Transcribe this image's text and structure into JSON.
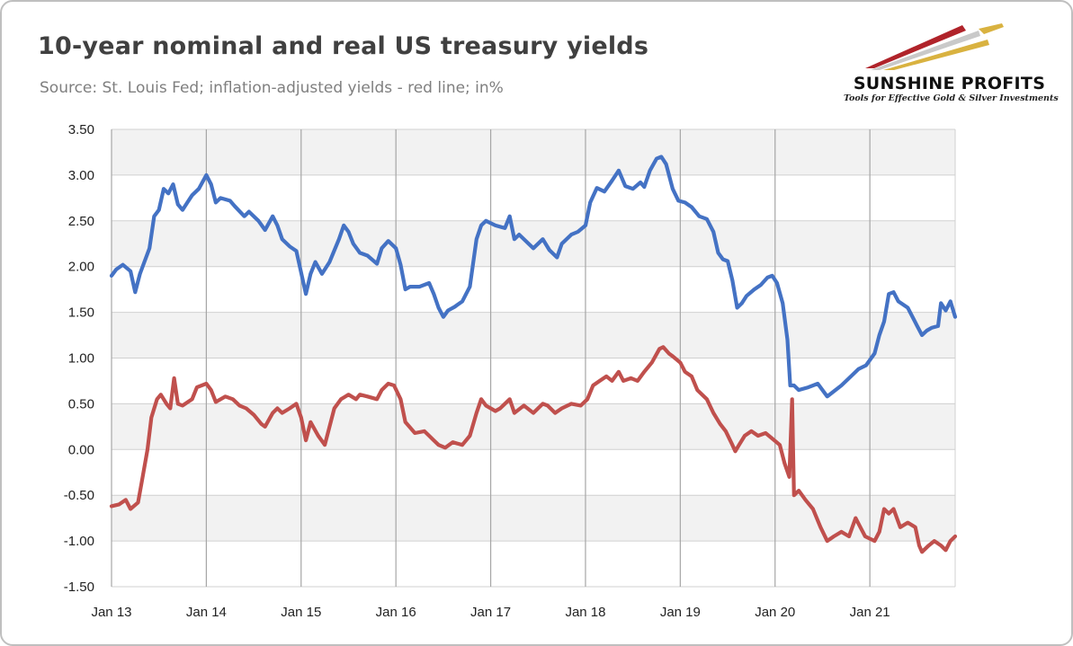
{
  "title": "10-year nominal and real US treasury yields",
  "subtitle": "Source: St. Louis Fed; inflation-adjusted yields - red line; in%",
  "logo": {
    "name": "SUNSHINE PROFITS",
    "tagline": "Tools for Effective Gold & Silver Investments",
    "colors": [
      "#b0232a",
      "#d9b240",
      "#c9c9c9"
    ]
  },
  "chart_data": {
    "type": "line",
    "title": "10-year nominal and real US treasury yields",
    "xlabel": "",
    "ylabel": "",
    "x_range": [
      2013.0,
      2021.9
    ],
    "ylim": [
      -1.5,
      3.5
    ],
    "y_ticks": [
      3.5,
      3.0,
      2.5,
      2.0,
      1.5,
      1.0,
      0.5,
      0.0,
      -0.5,
      -1.0,
      -1.5
    ],
    "y_tick_labels": [
      "3.50",
      "3.00",
      "2.50",
      "2.00",
      "1.50",
      "1.00",
      "0.50",
      "0.00",
      "-0.50",
      "-1.00",
      "-1.50"
    ],
    "x_ticks": [
      2013,
      2014,
      2015,
      2016,
      2017,
      2018,
      2019,
      2020,
      2021
    ],
    "x_tick_labels": [
      "Jan 13",
      "Jan 14",
      "Jan 15",
      "Jan 16",
      "Jan 17",
      "Jan 18",
      "Jan 19",
      "Jan 20",
      "Jan 21"
    ],
    "grid": true,
    "legend": "none",
    "series": [
      {
        "color": "#4472c4",
        "points": [
          [
            2013.0,
            1.9
          ],
          [
            2013.05,
            1.97
          ],
          [
            2013.12,
            2.02
          ],
          [
            2013.2,
            1.95
          ],
          [
            2013.25,
            1.72
          ],
          [
            2013.3,
            1.92
          ],
          [
            2013.4,
            2.2
          ],
          [
            2013.45,
            2.55
          ],
          [
            2013.5,
            2.62
          ],
          [
            2013.55,
            2.85
          ],
          [
            2013.6,
            2.8
          ],
          [
            2013.65,
            2.9
          ],
          [
            2013.7,
            2.68
          ],
          [
            2013.75,
            2.62
          ],
          [
            2013.8,
            2.7
          ],
          [
            2013.85,
            2.78
          ],
          [
            2013.92,
            2.85
          ],
          [
            2014.0,
            3.0
          ],
          [
            2014.05,
            2.9
          ],
          [
            2014.1,
            2.7
          ],
          [
            2014.15,
            2.75
          ],
          [
            2014.25,
            2.72
          ],
          [
            2014.3,
            2.66
          ],
          [
            2014.4,
            2.55
          ],
          [
            2014.45,
            2.6
          ],
          [
            2014.55,
            2.5
          ],
          [
            2014.62,
            2.4
          ],
          [
            2014.7,
            2.55
          ],
          [
            2014.75,
            2.45
          ],
          [
            2014.8,
            2.3
          ],
          [
            2014.88,
            2.22
          ],
          [
            2014.95,
            2.17
          ],
          [
            2015.05,
            1.7
          ],
          [
            2015.1,
            1.92
          ],
          [
            2015.15,
            2.05
          ],
          [
            2015.22,
            1.92
          ],
          [
            2015.3,
            2.05
          ],
          [
            2015.4,
            2.3
          ],
          [
            2015.45,
            2.45
          ],
          [
            2015.5,
            2.38
          ],
          [
            2015.55,
            2.25
          ],
          [
            2015.62,
            2.15
          ],
          [
            2015.7,
            2.12
          ],
          [
            2015.8,
            2.03
          ],
          [
            2015.85,
            2.2
          ],
          [
            2015.92,
            2.28
          ],
          [
            2016.0,
            2.2
          ],
          [
            2016.05,
            2.02
          ],
          [
            2016.1,
            1.75
          ],
          [
            2016.15,
            1.78
          ],
          [
            2016.25,
            1.78
          ],
          [
            2016.35,
            1.82
          ],
          [
            2016.4,
            1.7
          ],
          [
            2016.45,
            1.55
          ],
          [
            2016.5,
            1.45
          ],
          [
            2016.55,
            1.52
          ],
          [
            2016.62,
            1.56
          ],
          [
            2016.7,
            1.62
          ],
          [
            2016.78,
            1.78
          ],
          [
            2016.85,
            2.3
          ],
          [
            2016.9,
            2.45
          ],
          [
            2016.95,
            2.5
          ],
          [
            2017.05,
            2.45
          ],
          [
            2017.15,
            2.42
          ],
          [
            2017.2,
            2.55
          ],
          [
            2017.25,
            2.3
          ],
          [
            2017.3,
            2.35
          ],
          [
            2017.4,
            2.25
          ],
          [
            2017.45,
            2.2
          ],
          [
            2017.55,
            2.3
          ],
          [
            2017.62,
            2.18
          ],
          [
            2017.7,
            2.1
          ],
          [
            2017.75,
            2.25
          ],
          [
            2017.85,
            2.35
          ],
          [
            2017.92,
            2.38
          ],
          [
            2018.0,
            2.45
          ],
          [
            2018.05,
            2.7
          ],
          [
            2018.12,
            2.86
          ],
          [
            2018.2,
            2.82
          ],
          [
            2018.28,
            2.94
          ],
          [
            2018.35,
            3.05
          ],
          [
            2018.42,
            2.88
          ],
          [
            2018.5,
            2.85
          ],
          [
            2018.58,
            2.92
          ],
          [
            2018.62,
            2.87
          ],
          [
            2018.68,
            3.05
          ],
          [
            2018.75,
            3.18
          ],
          [
            2018.8,
            3.2
          ],
          [
            2018.85,
            3.12
          ],
          [
            2018.92,
            2.85
          ],
          [
            2018.98,
            2.72
          ],
          [
            2019.05,
            2.7
          ],
          [
            2019.12,
            2.65
          ],
          [
            2019.2,
            2.55
          ],
          [
            2019.28,
            2.52
          ],
          [
            2019.35,
            2.38
          ],
          [
            2019.4,
            2.15
          ],
          [
            2019.45,
            2.08
          ],
          [
            2019.5,
            2.06
          ],
          [
            2019.55,
            1.85
          ],
          [
            2019.6,
            1.55
          ],
          [
            2019.65,
            1.6
          ],
          [
            2019.7,
            1.68
          ],
          [
            2019.78,
            1.75
          ],
          [
            2019.85,
            1.8
          ],
          [
            2019.92,
            1.88
          ],
          [
            2019.97,
            1.9
          ],
          [
            2020.02,
            1.82
          ],
          [
            2020.08,
            1.6
          ],
          [
            2020.13,
            1.2
          ],
          [
            2020.16,
            0.7
          ],
          [
            2020.2,
            0.7
          ],
          [
            2020.25,
            0.65
          ],
          [
            2020.35,
            0.68
          ],
          [
            2020.45,
            0.72
          ],
          [
            2020.55,
            0.58
          ],
          [
            2020.6,
            0.62
          ],
          [
            2020.7,
            0.7
          ],
          [
            2020.8,
            0.8
          ],
          [
            2020.88,
            0.88
          ],
          [
            2020.96,
            0.92
          ],
          [
            2021.05,
            1.05
          ],
          [
            2021.1,
            1.25
          ],
          [
            2021.15,
            1.4
          ],
          [
            2021.2,
            1.7
          ],
          [
            2021.25,
            1.72
          ],
          [
            2021.3,
            1.62
          ],
          [
            2021.4,
            1.55
          ],
          [
            2021.5,
            1.35
          ],
          [
            2021.55,
            1.25
          ],
          [
            2021.6,
            1.3
          ],
          [
            2021.65,
            1.33
          ],
          [
            2021.72,
            1.35
          ],
          [
            2021.75,
            1.6
          ],
          [
            2021.8,
            1.52
          ],
          [
            2021.85,
            1.62
          ],
          [
            2021.9,
            1.45
          ]
        ]
      },
      {
        "color": "#c0504d",
        "points": [
          [
            2013.0,
            -0.62
          ],
          [
            2013.08,
            -0.6
          ],
          [
            2013.15,
            -0.55
          ],
          [
            2013.2,
            -0.65
          ],
          [
            2013.28,
            -0.58
          ],
          [
            2013.32,
            -0.35
          ],
          [
            2013.38,
            0.0
          ],
          [
            2013.42,
            0.35
          ],
          [
            2013.48,
            0.55
          ],
          [
            2013.52,
            0.6
          ],
          [
            2013.58,
            0.5
          ],
          [
            2013.62,
            0.45
          ],
          [
            2013.66,
            0.78
          ],
          [
            2013.7,
            0.5
          ],
          [
            2013.75,
            0.48
          ],
          [
            2013.85,
            0.55
          ],
          [
            2013.9,
            0.68
          ],
          [
            2014.0,
            0.72
          ],
          [
            2014.05,
            0.65
          ],
          [
            2014.1,
            0.52
          ],
          [
            2014.2,
            0.58
          ],
          [
            2014.28,
            0.55
          ],
          [
            2014.35,
            0.48
          ],
          [
            2014.42,
            0.45
          ],
          [
            2014.5,
            0.38
          ],
          [
            2014.58,
            0.28
          ],
          [
            2014.62,
            0.25
          ],
          [
            2014.7,
            0.4
          ],
          [
            2014.75,
            0.45
          ],
          [
            2014.8,
            0.4
          ],
          [
            2014.88,
            0.45
          ],
          [
            2014.95,
            0.5
          ],
          [
            2015.0,
            0.35
          ],
          [
            2015.05,
            0.1
          ],
          [
            2015.1,
            0.3
          ],
          [
            2015.18,
            0.15
          ],
          [
            2015.25,
            0.05
          ],
          [
            2015.3,
            0.25
          ],
          [
            2015.35,
            0.45
          ],
          [
            2015.42,
            0.55
          ],
          [
            2015.5,
            0.6
          ],
          [
            2015.58,
            0.55
          ],
          [
            2015.62,
            0.6
          ],
          [
            2015.7,
            0.58
          ],
          [
            2015.8,
            0.55
          ],
          [
            2015.85,
            0.65
          ],
          [
            2015.92,
            0.72
          ],
          [
            2015.98,
            0.7
          ],
          [
            2016.05,
            0.55
          ],
          [
            2016.1,
            0.3
          ],
          [
            2016.2,
            0.18
          ],
          [
            2016.3,
            0.2
          ],
          [
            2016.35,
            0.15
          ],
          [
            2016.4,
            0.1
          ],
          [
            2016.45,
            0.05
          ],
          [
            2016.52,
            0.02
          ],
          [
            2016.6,
            0.08
          ],
          [
            2016.7,
            0.05
          ],
          [
            2016.78,
            0.15
          ],
          [
            2016.85,
            0.4
          ],
          [
            2016.9,
            0.55
          ],
          [
            2016.95,
            0.48
          ],
          [
            2017.05,
            0.42
          ],
          [
            2017.1,
            0.45
          ],
          [
            2017.2,
            0.55
          ],
          [
            2017.25,
            0.4
          ],
          [
            2017.35,
            0.48
          ],
          [
            2017.45,
            0.4
          ],
          [
            2017.55,
            0.5
          ],
          [
            2017.6,
            0.48
          ],
          [
            2017.68,
            0.4
          ],
          [
            2017.75,
            0.45
          ],
          [
            2017.85,
            0.5
          ],
          [
            2017.95,
            0.48
          ],
          [
            2018.02,
            0.55
          ],
          [
            2018.08,
            0.7
          ],
          [
            2018.15,
            0.75
          ],
          [
            2018.22,
            0.8
          ],
          [
            2018.28,
            0.75
          ],
          [
            2018.35,
            0.85
          ],
          [
            2018.4,
            0.75
          ],
          [
            2018.48,
            0.78
          ],
          [
            2018.55,
            0.75
          ],
          [
            2018.62,
            0.85
          ],
          [
            2018.7,
            0.95
          ],
          [
            2018.78,
            1.1
          ],
          [
            2018.82,
            1.12
          ],
          [
            2018.88,
            1.05
          ],
          [
            2018.92,
            1.02
          ],
          [
            2019.0,
            0.95
          ],
          [
            2019.05,
            0.85
          ],
          [
            2019.12,
            0.8
          ],
          [
            2019.18,
            0.65
          ],
          [
            2019.28,
            0.55
          ],
          [
            2019.35,
            0.4
          ],
          [
            2019.42,
            0.28
          ],
          [
            2019.48,
            0.2
          ],
          [
            2019.55,
            0.05
          ],
          [
            2019.58,
            -0.02
          ],
          [
            2019.62,
            0.05
          ],
          [
            2019.68,
            0.15
          ],
          [
            2019.75,
            0.2
          ],
          [
            2019.82,
            0.15
          ],
          [
            2019.9,
            0.18
          ],
          [
            2019.97,
            0.12
          ],
          [
            2020.05,
            0.05
          ],
          [
            2020.1,
            -0.15
          ],
          [
            2020.15,
            -0.3
          ],
          [
            2020.18,
            0.55
          ],
          [
            2020.2,
            -0.5
          ],
          [
            2020.25,
            -0.45
          ],
          [
            2020.32,
            -0.55
          ],
          [
            2020.4,
            -0.65
          ],
          [
            2020.48,
            -0.85
          ],
          [
            2020.55,
            -1.0
          ],
          [
            2020.62,
            -0.95
          ],
          [
            2020.7,
            -0.9
          ],
          [
            2020.78,
            -0.95
          ],
          [
            2020.85,
            -0.75
          ],
          [
            2020.9,
            -0.85
          ],
          [
            2020.95,
            -0.95
          ],
          [
            2021.05,
            -1.0
          ],
          [
            2021.1,
            -0.9
          ],
          [
            2021.15,
            -0.65
          ],
          [
            2021.2,
            -0.7
          ],
          [
            2021.25,
            -0.65
          ],
          [
            2021.32,
            -0.85
          ],
          [
            2021.4,
            -0.8
          ],
          [
            2021.48,
            -0.85
          ],
          [
            2021.52,
            -1.05
          ],
          [
            2021.55,
            -1.12
          ],
          [
            2021.62,
            -1.05
          ],
          [
            2021.68,
            -1.0
          ],
          [
            2021.75,
            -1.05
          ],
          [
            2021.8,
            -1.1
          ],
          [
            2021.85,
            -1.0
          ],
          [
            2021.9,
            -0.95
          ]
        ]
      }
    ]
  }
}
